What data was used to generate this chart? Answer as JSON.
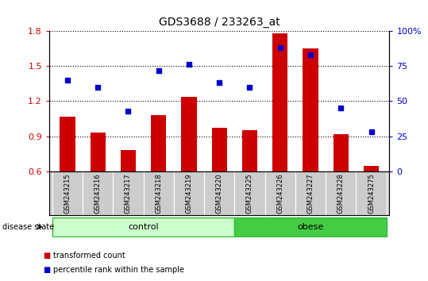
{
  "title": "GDS3688 / 233263_at",
  "samples": [
    "GSM243215",
    "GSM243216",
    "GSM243217",
    "GSM243218",
    "GSM243219",
    "GSM243220",
    "GSM243225",
    "GSM243226",
    "GSM243227",
    "GSM243228",
    "GSM243275"
  ],
  "transformed_count": [
    1.07,
    0.93,
    0.78,
    1.08,
    1.24,
    0.97,
    0.95,
    1.78,
    1.65,
    0.92,
    0.65
  ],
  "percentile_rank": [
    65,
    60,
    43,
    72,
    76,
    63,
    60,
    88,
    83,
    45,
    28
  ],
  "bar_color": "#cc0000",
  "dot_color": "#0000cc",
  "ylim_left": [
    0.6,
    1.8
  ],
  "ylim_right": [
    0,
    100
  ],
  "yticks_left": [
    0.6,
    0.9,
    1.2,
    1.5,
    1.8
  ],
  "yticks_right": [
    0,
    25,
    50,
    75,
    100
  ],
  "ytick_labels_right": [
    "0",
    "25",
    "50",
    "75",
    "100%"
  ],
  "control_count": 6,
  "obese_count": 5,
  "control_label": "control",
  "obese_label": "obese",
  "disease_state_label": "disease state",
  "legend_bar_label": "transformed count",
  "legend_dot_label": "percentile rank within the sample",
  "control_color_light": "#ccffcc",
  "obese_color": "#44cc44",
  "tick_area_color": "#cccccc",
  "tick_area_border": "#888888",
  "bg_color": "#ffffff"
}
